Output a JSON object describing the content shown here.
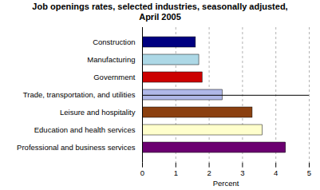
{
  "chart_data": {
    "type": "bar",
    "orientation": "horizontal",
    "title": "Job openings rates, selected industries, seasonally adjusted,\nApril 2005",
    "categories": [
      "Construction",
      "Manufacturing",
      "Government",
      "Trade, transportation, and utilities",
      "Leisure and hospitality",
      "Education and health services",
      "Professional and business services"
    ],
    "values": [
      1.6,
      1.7,
      1.8,
      2.4,
      3.3,
      3.6,
      4.3
    ],
    "colors": [
      "#000080",
      "#ADD8E6",
      "#CC0000",
      "#B0B8E8",
      "#8B4010",
      "#FFFFCC",
      "#6B0070"
    ],
    "xlim": [
      0,
      5
    ],
    "xticks": [
      0,
      1,
      2,
      3,
      4,
      5
    ],
    "xlabel": "Percent",
    "grid": true
  }
}
